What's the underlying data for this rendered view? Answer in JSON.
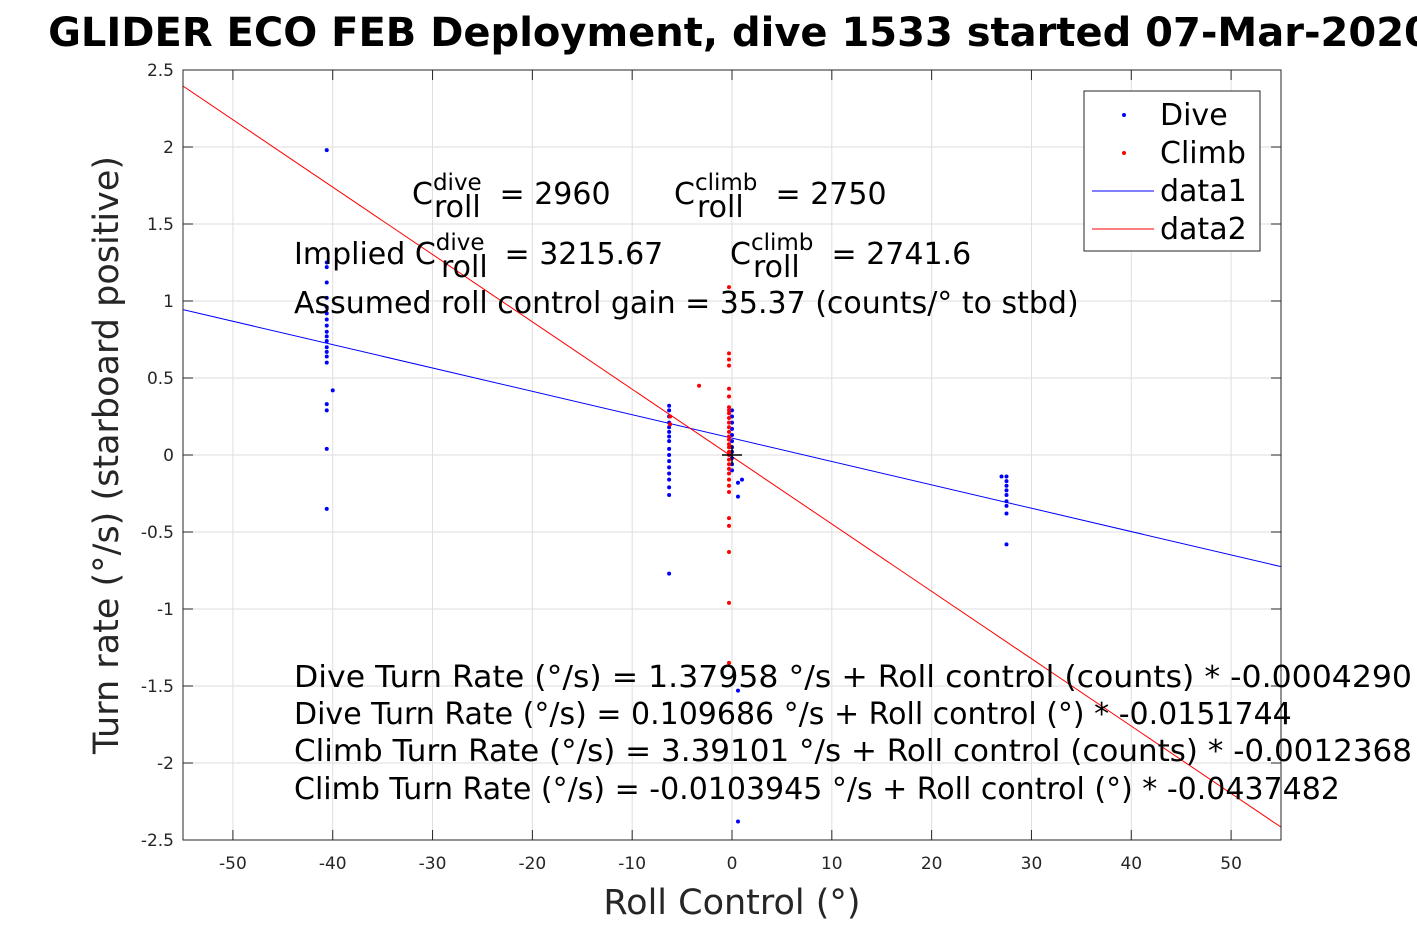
{
  "chart_data": {
    "type": "scatter",
    "title": "GLIDER ECO FEB Deployment, dive 1533 started 07-Mar-2020",
    "xlabel": "Roll Control (°)",
    "ylabel": "Turn rate (°/s) (starboard positive)",
    "xlim": [
      -55,
      55
    ],
    "ylim": [
      -2.5,
      2.5
    ],
    "xticks": [
      -50,
      -40,
      -30,
      -20,
      -10,
      0,
      10,
      20,
      30,
      40,
      50
    ],
    "yticks": [
      -2.5,
      -2,
      -1.5,
      -1,
      -0.5,
      0,
      0.5,
      1,
      1.5,
      2,
      2.5
    ],
    "grid": true,
    "legend_position": "top-right",
    "colors": {
      "dive": "#0000ff",
      "climb": "#ff0000",
      "cross": "#000000"
    },
    "series": [
      {
        "name": "Dive",
        "kind": "points",
        "color": "#0000ff",
        "points": [
          [
            -40.6,
            1.98
          ],
          [
            -40.6,
            1.25
          ],
          [
            -40.6,
            1.22
          ],
          [
            -40.6,
            1.12
          ],
          [
            -40.6,
            1.02
          ],
          [
            -40.6,
            0.96
          ],
          [
            -40.6,
            0.92
          ],
          [
            -40.6,
            0.88
          ],
          [
            -40.6,
            0.84
          ],
          [
            -40.6,
            0.8
          ],
          [
            -40.6,
            0.77
          ],
          [
            -40.6,
            0.74
          ],
          [
            -40.6,
            0.7
          ],
          [
            -40.6,
            0.67
          ],
          [
            -40.6,
            0.64
          ],
          [
            -40.6,
            0.6
          ],
          [
            -40.0,
            0.42
          ],
          [
            -40.6,
            0.33
          ],
          [
            -40.6,
            0.29
          ],
          [
            -40.6,
            0.04
          ],
          [
            -40.6,
            -0.35
          ],
          [
            -6.3,
            0.32
          ],
          [
            -6.3,
            0.29
          ],
          [
            -6.3,
            0.25
          ],
          [
            -6.3,
            0.21
          ],
          [
            -6.3,
            0.18
          ],
          [
            -6.3,
            0.15
          ],
          [
            -6.3,
            0.12
          ],
          [
            -6.3,
            0.09
          ],
          [
            -6.3,
            0.04
          ],
          [
            -6.3,
            0.0
          ],
          [
            -6.3,
            -0.04
          ],
          [
            -6.3,
            -0.08
          ],
          [
            -6.3,
            -0.12
          ],
          [
            -6.3,
            -0.16
          ],
          [
            -6.3,
            -0.21
          ],
          [
            -6.3,
            -0.26
          ],
          [
            -6.3,
            -0.77
          ],
          [
            0.0,
            0.29
          ],
          [
            0.0,
            0.25
          ],
          [
            0.0,
            0.21
          ],
          [
            0.0,
            0.17
          ],
          [
            0.0,
            0.13
          ],
          [
            0.0,
            0.09
          ],
          [
            0.0,
            0.05
          ],
          [
            0.0,
            0.02
          ],
          [
            0.0,
            -0.02
          ],
          [
            0.0,
            -0.06
          ],
          [
            0.0,
            -0.1
          ],
          [
            0.6,
            -0.18
          ],
          [
            1.0,
            -0.16
          ],
          [
            0.6,
            -0.27
          ],
          [
            0.6,
            -1.53
          ],
          [
            0.6,
            -2.38
          ],
          [
            27.0,
            -0.14
          ],
          [
            27.5,
            -0.14
          ],
          [
            27.5,
            -0.17
          ],
          [
            27.5,
            -0.2
          ],
          [
            27.5,
            -0.23
          ],
          [
            27.5,
            -0.26
          ],
          [
            27.5,
            -0.3
          ],
          [
            27.5,
            -0.33
          ],
          [
            27.5,
            -0.38
          ],
          [
            27.5,
            -0.58
          ]
        ]
      },
      {
        "name": "Climb",
        "kind": "points",
        "color": "#ff0000",
        "points": [
          [
            -3.3,
            0.45
          ],
          [
            -0.3,
            1.09
          ],
          [
            -0.3,
            0.66
          ],
          [
            -0.3,
            0.62
          ],
          [
            -0.3,
            0.58
          ],
          [
            -0.3,
            0.43
          ],
          [
            -0.3,
            0.38
          ],
          [
            -0.3,
            0.31
          ],
          [
            -0.3,
            0.29
          ],
          [
            -0.3,
            0.27
          ],
          [
            -0.3,
            0.24
          ],
          [
            -0.3,
            0.21
          ],
          [
            -0.3,
            0.18
          ],
          [
            -0.3,
            0.15
          ],
          [
            -0.3,
            0.12
          ],
          [
            -0.3,
            0.1
          ],
          [
            -0.3,
            0.07
          ],
          [
            -0.3,
            0.05
          ],
          [
            -0.3,
            0.02
          ],
          [
            -0.3,
            0.0
          ],
          [
            -0.3,
            -0.03
          ],
          [
            -0.3,
            -0.06
          ],
          [
            -0.3,
            -0.09
          ],
          [
            -0.3,
            -0.12
          ],
          [
            -0.3,
            -0.16
          ],
          [
            -0.3,
            -0.2
          ],
          [
            -0.3,
            -0.24
          ],
          [
            -0.3,
            -0.41
          ],
          [
            -0.3,
            -0.46
          ],
          [
            -0.3,
            -0.63
          ],
          [
            -0.3,
            -0.96
          ],
          [
            -0.3,
            -1.35
          ],
          [
            -6.2,
            0.25
          ],
          [
            -6.2,
            0.2
          ]
        ]
      },
      {
        "name": "data1",
        "kind": "line",
        "color": "#0000ff",
        "intercept": 0.109686,
        "slope": -0.0151744
      },
      {
        "name": "data2",
        "kind": "line",
        "color": "#ff0000",
        "intercept": -0.0103945,
        "slope": -0.0437482
      }
    ],
    "crosshair": [
      0,
      0
    ],
    "annotations": {
      "c_roll_dive": {
        "base": "C",
        "sup": "dive",
        "sub": "roll",
        "value": " = 2960"
      },
      "c_roll_climb": {
        "base": "C",
        "sup": "climb",
        "sub": "roll",
        "value": " = 2750"
      },
      "implied_prefix": "Implied ",
      "implied_dive": {
        "base": "C",
        "sup": "dive",
        "sub": "roll",
        "value": " = 3215.67"
      },
      "implied_climb": {
        "base": "C",
        "sup": "climb",
        "sub": "roll",
        "value": " = 2741.6"
      },
      "gain": "Assumed roll control gain = 35.37 (counts/° to stbd)",
      "eq1": "Dive Turn Rate (°/s) = 1.37958 °/s + Roll control (counts) * -0.0004290",
      "eq2": "Dive Turn Rate (°/s) = 0.109686 °/s + Roll control (°) * -0.0151744",
      "eq3": "Climb Turn Rate (°/s) = 3.39101 °/s + Roll control (counts) * -0.0012368",
      "eq4": "Climb Turn Rate (°/s) = -0.0103945 °/s + Roll control (°) * -0.0437482"
    }
  }
}
